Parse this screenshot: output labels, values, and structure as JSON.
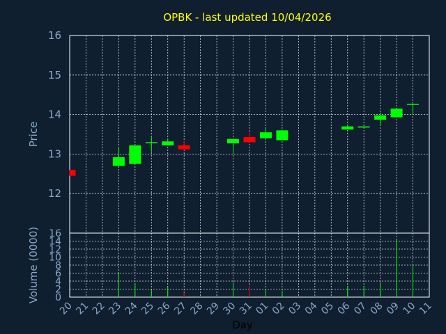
{
  "chart_data": {
    "type": "candlestick",
    "title": "OPBK - last updated 10/04/2026",
    "ylabel": "Price",
    "volume_label": "Volume (0000)",
    "xlabel": "Day",
    "ylim": [
      11,
      16
    ],
    "y_ticks": [
      12,
      13,
      14,
      15,
      16
    ],
    "volume_ylim": [
      0,
      16
    ],
    "volume_ticks": [
      0,
      2,
      4,
      6,
      8,
      10,
      12,
      14,
      16
    ],
    "x_ticks": [
      "20",
      "21",
      "22",
      "23",
      "24",
      "25",
      "26",
      "27",
      "28",
      "29",
      "30",
      "31",
      "01",
      "02",
      "03",
      "04",
      "05",
      "06",
      "07",
      "08",
      "09",
      "10",
      "11"
    ],
    "up_color": "#00ff00",
    "down_color": "#ff0000",
    "grid": true,
    "candles": [
      {
        "day": "20",
        "open": 12.6,
        "close": 12.45,
        "high": 12.6,
        "low": 12.45,
        "volume": 0
      },
      {
        "day": "23",
        "open": 12.7,
        "close": 12.92,
        "high": 13.18,
        "low": 12.7,
        "volume": 6.2
      },
      {
        "day": "24",
        "open": 12.75,
        "close": 13.22,
        "high": 13.22,
        "low": 12.75,
        "volume": 3.5
      },
      {
        "day": "25",
        "open": 13.3,
        "close": 13.3,
        "high": 13.45,
        "low": 13.05,
        "volume": 1.8
      },
      {
        "day": "26",
        "open": 13.22,
        "close": 13.32,
        "high": 13.38,
        "low": 13.22,
        "volume": 2.6
      },
      {
        "day": "27",
        "open": 13.22,
        "close": 13.12,
        "high": 13.32,
        "low": 13.12,
        "volume": 1.0
      },
      {
        "day": "30",
        "open": 13.27,
        "close": 13.38,
        "high": 13.38,
        "low": 13.0,
        "volume": 3.7
      },
      {
        "day": "31",
        "open": 13.43,
        "close": 13.3,
        "high": 13.55,
        "low": 13.3,
        "volume": 2.8
      },
      {
        "day": "01",
        "open": 13.4,
        "close": 13.55,
        "high": 13.65,
        "low": 13.4,
        "volume": 1.8
      },
      {
        "day": "02",
        "open": 13.35,
        "close": 13.6,
        "high": 13.6,
        "low": 13.35,
        "volume": 1.6
      },
      {
        "day": "06",
        "open": 13.62,
        "close": 13.7,
        "high": 13.75,
        "low": 13.62,
        "volume": 2.8
      },
      {
        "day": "07",
        "open": 13.67,
        "close": 13.7,
        "high": 13.7,
        "low": 13.67,
        "volume": 2.8
      },
      {
        "day": "08",
        "open": 13.87,
        "close": 13.98,
        "high": 14.05,
        "low": 13.72,
        "volume": 3.7
      },
      {
        "day": "09",
        "open": 13.93,
        "close": 14.15,
        "high": 14.15,
        "low": 13.93,
        "volume": 14.3
      },
      {
        "day": "10",
        "open": 14.25,
        "close": 14.27,
        "high": 14.3,
        "low": 14.0,
        "volume": 7.9
      }
    ]
  }
}
